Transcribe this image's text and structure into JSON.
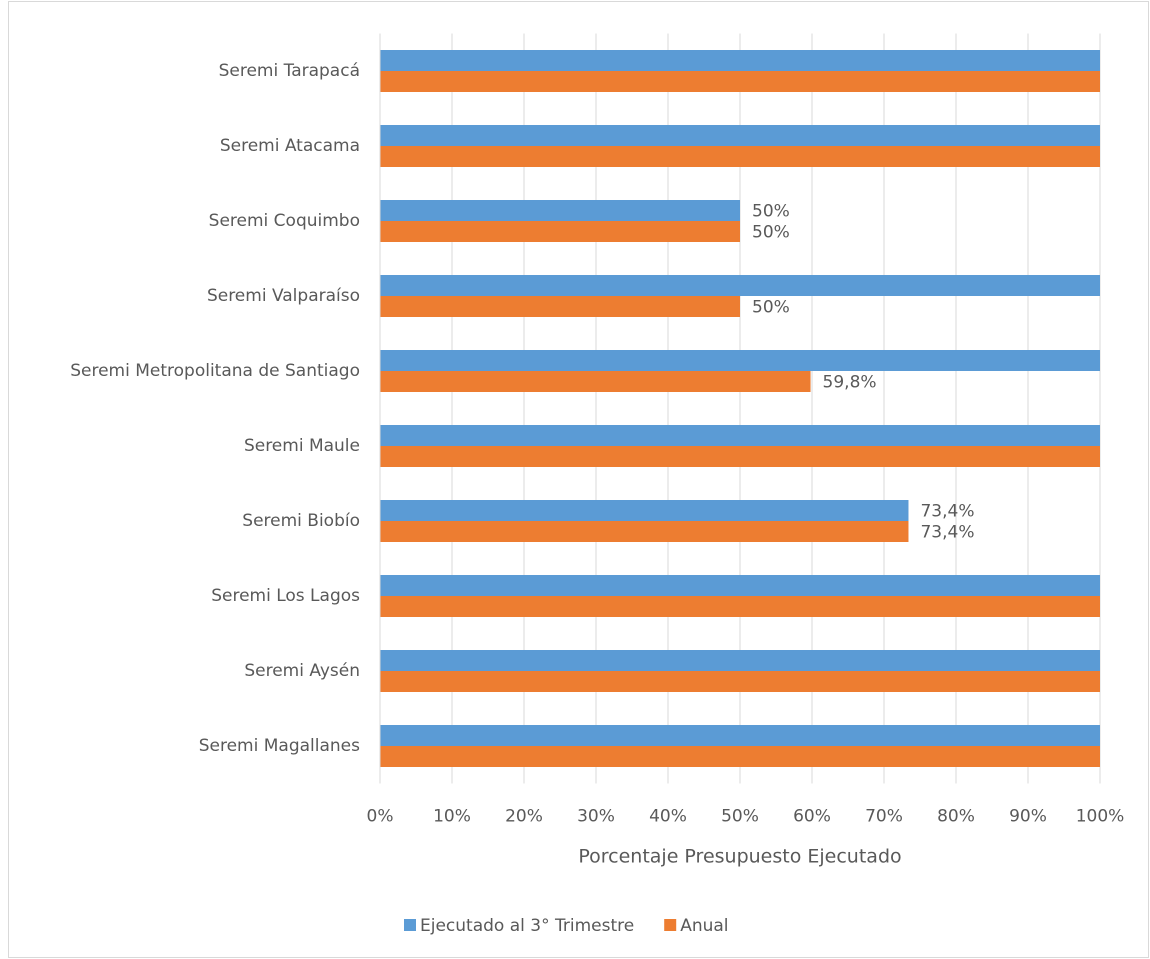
{
  "chart_data": {
    "type": "bar",
    "orientation": "horizontal",
    "categories": [
      "Seremi Tarapacá",
      "Seremi Atacama",
      "Seremi Coquimbo",
      "Seremi Valparaíso",
      "Seremi Metropolitana de Santiago",
      "Seremi Maule",
      "Seremi Biobío",
      "Seremi Los Lagos",
      "Seremi Aysén",
      "Seremi Magallanes"
    ],
    "series": [
      {
        "name": "Ejecutado al 3° Trimestre",
        "color": "#5b9bd5",
        "values": [
          100,
          100,
          50,
          100,
          100,
          100,
          73.4,
          100,
          100,
          100
        ],
        "value_labels": [
          null,
          null,
          "50%",
          null,
          null,
          null,
          "73,4%",
          null,
          null,
          null
        ]
      },
      {
        "name": "Anual",
        "color": "#ed7d31",
        "values": [
          100,
          100,
          50,
          50,
          59.8,
          100,
          73.4,
          100,
          100,
          100
        ],
        "value_labels": [
          null,
          null,
          "50%",
          "50%",
          "59,8%",
          null,
          "73,4%",
          null,
          null,
          null
        ]
      }
    ],
    "xlabel": "Porcentaje Presupuesto Ejecutado",
    "xlim": [
      0,
      100
    ],
    "xticks": [
      {
        "value": 0,
        "label": "0%"
      },
      {
        "value": 10,
        "label": "10%"
      },
      {
        "value": 20,
        "label": "20%"
      },
      {
        "value": 30,
        "label": "30%"
      },
      {
        "value": 40,
        "label": "40%"
      },
      {
        "value": 50,
        "label": "50%"
      },
      {
        "value": 60,
        "label": "60%"
      },
      {
        "value": 70,
        "label": "70%"
      },
      {
        "value": 80,
        "label": "80%"
      },
      {
        "value": 90,
        "label": "90%"
      },
      {
        "value": 100,
        "label": "100%"
      }
    ],
    "grid": true,
    "legend": "bottom"
  }
}
